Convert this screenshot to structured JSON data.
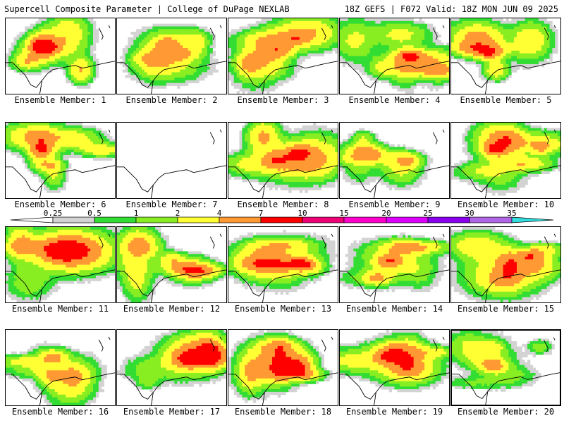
{
  "header": {
    "left": "Supercell Composite Parameter | College of DuPage NEXLAB",
    "right": "18Z GEFS | F072 Valid: 18Z MON JUN 09 2025"
  },
  "panel_label_prefix": "Ensemble Member: ",
  "members": [
    {
      "label": "Ensemble Member: 1",
      "coverage": 0.55,
      "seed": 11
    },
    {
      "label": "Ensemble Member: 2",
      "coverage": 0.45,
      "seed": 23
    },
    {
      "label": "Ensemble Member: 3",
      "coverage": 0.65,
      "seed": 37
    },
    {
      "label": "Ensemble Member: 4",
      "coverage": 0.6,
      "seed": 41
    },
    {
      "label": "Ensemble Member: 5",
      "coverage": 0.6,
      "seed": 53
    },
    {
      "label": "Ensemble Member: 6",
      "coverage": 0.5,
      "seed": 67
    },
    {
      "label": "Ensemble Member: 7",
      "coverage": 0.0,
      "seed": 71
    },
    {
      "label": "Ensemble Member: 8",
      "coverage": 0.6,
      "seed": 83
    },
    {
      "label": "Ensemble Member: 9",
      "coverage": 0.5,
      "seed": 97
    },
    {
      "label": "Ensemble Member: 10",
      "coverage": 0.55,
      "seed": 101
    },
    {
      "label": "Ensemble Member: 11",
      "coverage": 0.65,
      "seed": 113
    },
    {
      "label": "Ensemble Member: 12",
      "coverage": 0.55,
      "seed": 127
    },
    {
      "label": "Ensemble Member: 13",
      "coverage": 0.7,
      "seed": 131
    },
    {
      "label": "Ensemble Member: 14",
      "coverage": 0.5,
      "seed": 149
    },
    {
      "label": "Ensemble Member: 15",
      "coverage": 0.5,
      "seed": 151
    },
    {
      "label": "Ensemble Member: 16",
      "coverage": 0.55,
      "seed": 163
    },
    {
      "label": "Ensemble Member: 17",
      "coverage": 0.6,
      "seed": 173
    },
    {
      "label": "Ensemble Member: 18",
      "coverage": 0.65,
      "seed": 181
    },
    {
      "label": "Ensemble Member: 19",
      "coverage": 0.5,
      "seed": 191
    },
    {
      "label": "Ensemble Member: 20",
      "coverage": 0.55,
      "seed": 199
    }
  ],
  "selected_member": 20,
  "colorbar": {
    "ticks": [
      "0.25",
      "0.5",
      "1",
      "2",
      "4",
      "7",
      "10",
      "15",
      "20",
      "25",
      "30",
      "35"
    ],
    "colors": [
      "#d3d3d3",
      "#33dd33",
      "#88ee22",
      "#ffff33",
      "#ff9933",
      "#ff0000",
      "#ee0077",
      "#ff00cc",
      "#dd00ff",
      "#8800ee",
      "#b066e6",
      "#33dddd"
    ]
  },
  "field_levels": [
    {
      "threshold": 0.25,
      "color": "#d3d3d3"
    },
    {
      "threshold": 0.5,
      "color": "#33dd33"
    },
    {
      "threshold": 1,
      "color": "#88ee22"
    },
    {
      "threshold": 2,
      "color": "#ffff33"
    },
    {
      "threshold": 4,
      "color": "#ff9933"
    },
    {
      "threshold": 7,
      "color": "#ff0000"
    }
  ]
}
